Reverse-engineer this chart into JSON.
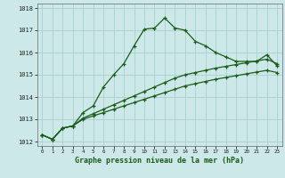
{
  "title": "Graphe pression niveau de la mer (hPa)",
  "bg_color": "#cde8e8",
  "grid_color": "#aacfcf",
  "line_color": "#1a5c1a",
  "ylim": [
    1011.8,
    1018.2
  ],
  "xlim": [
    -0.5,
    23.5
  ],
  "yticks": [
    1012,
    1013,
    1014,
    1015,
    1016,
    1017,
    1018
  ],
  "xticks": [
    0,
    1,
    2,
    3,
    4,
    5,
    6,
    7,
    8,
    9,
    10,
    11,
    12,
    13,
    14,
    15,
    16,
    17,
    18,
    19,
    20,
    21,
    22,
    23
  ],
  "line1": [
    1012.3,
    1012.1,
    1012.6,
    1012.7,
    1013.3,
    1013.6,
    1014.45,
    1015.0,
    1015.5,
    1016.3,
    1017.05,
    1017.1,
    1017.55,
    1017.1,
    1017.0,
    1016.5,
    1016.3,
    1016.0,
    1015.8,
    1015.6,
    1015.6,
    1015.6,
    1015.9,
    1015.4
  ],
  "line2": [
    1012.3,
    1012.1,
    1012.6,
    1012.7,
    1013.0,
    1013.15,
    1013.3,
    1013.45,
    1013.6,
    1013.75,
    1013.9,
    1014.05,
    1014.2,
    1014.35,
    1014.5,
    1014.6,
    1014.7,
    1014.8,
    1014.88,
    1014.96,
    1015.04,
    1015.12,
    1015.2,
    1015.1
  ],
  "line3": [
    1012.3,
    1012.1,
    1012.6,
    1012.7,
    1013.05,
    1013.25,
    1013.45,
    1013.65,
    1013.85,
    1014.05,
    1014.25,
    1014.45,
    1014.65,
    1014.85,
    1015.0,
    1015.1,
    1015.2,
    1015.3,
    1015.38,
    1015.46,
    1015.54,
    1015.62,
    1015.7,
    1015.5
  ]
}
